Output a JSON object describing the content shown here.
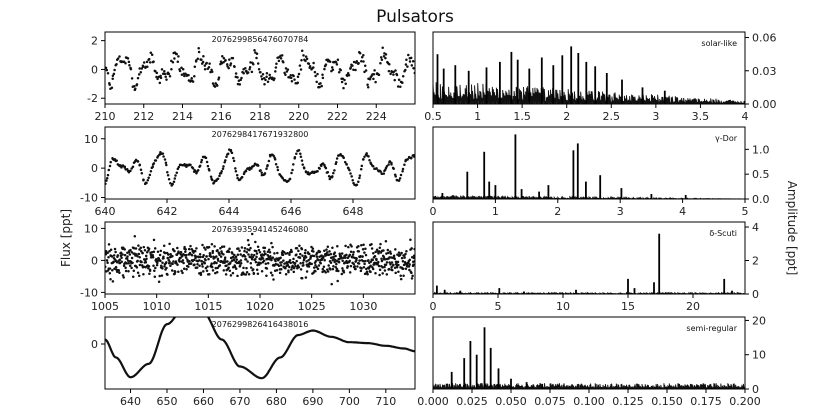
{
  "title": "Pulsators",
  "ylabel_left": "Flux [ppt]",
  "ylabel_right": "Amplitude [ppt]",
  "chart_data": [
    {
      "type": "scatter",
      "label": "2076299856476070784",
      "xlim": [
        210,
        226
      ],
      "ylim": [
        -2.4,
        2.6
      ],
      "xticks": [
        210,
        212,
        214,
        216,
        218,
        220,
        222,
        224
      ],
      "yticks": [
        -2,
        0,
        2
      ],
      "signal": {
        "components": [
          {
            "amp": 0.75,
            "period": 1.35
          },
          {
            "amp": 0.35,
            "period": 0.6
          }
        ],
        "noise": 0.35,
        "points": 360
      }
    },
    {
      "type": "bar",
      "label": "solar-like",
      "xlim": [
        0.5,
        4.0
      ],
      "ylim": [
        0,
        0.065
      ],
      "xticks": [
        0.5,
        1.0,
        1.5,
        2.0,
        2.5,
        3.0,
        3.5,
        4.0
      ],
      "yticks": [
        0.0,
        0.03,
        0.06
      ],
      "ytick_labels": [
        "0.00",
        "0.03",
        "0.06"
      ],
      "peaks": [
        [
          0.55,
          0.045
        ],
        [
          0.62,
          0.032
        ],
        [
          0.75,
          0.035
        ],
        [
          0.9,
          0.03
        ],
        [
          1.1,
          0.033
        ],
        [
          1.25,
          0.038
        ],
        [
          1.38,
          0.047
        ],
        [
          1.45,
          0.04
        ],
        [
          1.58,
          0.032
        ],
        [
          1.72,
          0.042
        ],
        [
          1.85,
          0.035
        ],
        [
          1.95,
          0.044
        ],
        [
          2.05,
          0.052
        ],
        [
          2.13,
          0.046
        ],
        [
          2.22,
          0.038
        ],
        [
          2.32,
          0.034
        ],
        [
          2.45,
          0.028
        ],
        [
          2.62,
          0.022
        ],
        [
          2.85,
          0.015
        ],
        [
          3.1,
          0.012
        ]
      ],
      "floor": {
        "lo": 0.5,
        "hi": 4.0,
        "base": 0.013,
        "decay": 0.0032,
        "bins": 300
      }
    },
    {
      "type": "scatter",
      "label": "2076298417671932800",
      "xlim": [
        640,
        650
      ],
      "ylim": [
        -10.5,
        14
      ],
      "xticks": [
        640,
        642,
        644,
        646,
        648
      ],
      "yticks": [
        -10,
        0,
        10
      ],
      "signal": {
        "components": [
          {
            "amp": 3.2,
            "period": 0.74
          },
          {
            "amp": 2.2,
            "period": 1.15
          },
          {
            "amp": 1.2,
            "period": 0.43
          }
        ],
        "noise": 0.35,
        "points": 330
      }
    },
    {
      "type": "bar",
      "label": "γ-Dor",
      "xlim": [
        0,
        5
      ],
      "ylim": [
        0,
        1.45
      ],
      "xticks": [
        0,
        1,
        2,
        3,
        4,
        5
      ],
      "yticks": [
        0.0,
        0.5,
        1.0
      ],
      "ytick_labels": [
        "0.0",
        "0.5",
        "1.0"
      ],
      "peaks": [
        [
          0.15,
          0.12
        ],
        [
          0.55,
          0.55
        ],
        [
          0.82,
          0.95
        ],
        [
          0.9,
          0.35
        ],
        [
          1.0,
          0.28
        ],
        [
          1.32,
          1.3
        ],
        [
          1.42,
          0.2
        ],
        [
          1.7,
          0.15
        ],
        [
          1.85,
          0.28
        ],
        [
          2.25,
          0.98
        ],
        [
          2.32,
          1.12
        ],
        [
          2.45,
          0.35
        ],
        [
          2.68,
          0.48
        ],
        [
          3.02,
          0.22
        ],
        [
          3.5,
          0.1
        ],
        [
          4.05,
          0.08
        ]
      ],
      "floor": {
        "lo": 0,
        "hi": 5,
        "base": 0.05,
        "decay": 0.01,
        "bins": 260
      }
    },
    {
      "type": "scatter",
      "label": "2076393594145246080",
      "xlim": [
        1005,
        1035
      ],
      "ylim": [
        -10.5,
        12
      ],
      "xticks": [
        1005,
        1010,
        1015,
        1020,
        1025,
        1030
      ],
      "yticks": [
        -10,
        0,
        10
      ],
      "signal": {
        "components": [
          {
            "amp": 2.3,
            "period": 0.058
          },
          {
            "amp": 1.2,
            "period": 0.066
          }
        ],
        "noise": 2.6,
        "points": 950
      }
    },
    {
      "type": "bar",
      "label": "δ-Scuti",
      "xlim": [
        0,
        24
      ],
      "ylim": [
        0,
        4.3
      ],
      "xticks": [
        0,
        5,
        10,
        15,
        20
      ],
      "yticks": [
        0,
        2,
        4
      ],
      "ytick_labels": [
        "0",
        "2",
        "4"
      ],
      "peaks": [
        [
          0.3,
          0.5
        ],
        [
          0.9,
          0.25
        ],
        [
          2.1,
          0.2
        ],
        [
          5.1,
          0.35
        ],
        [
          7.0,
          0.15
        ],
        [
          11.0,
          0.25
        ],
        [
          15.0,
          0.9
        ],
        [
          15.5,
          0.35
        ],
        [
          17.0,
          0.7
        ],
        [
          17.4,
          3.6
        ],
        [
          22.4,
          0.9
        ],
        [
          23.0,
          0.2
        ]
      ],
      "floor": {
        "lo": 0,
        "hi": 24,
        "base": 0.05,
        "decay": 0.0,
        "bins": 200
      }
    },
    {
      "type": "line",
      "label": "2076299826416438016",
      "xlim": [
        633,
        718
      ],
      "ylim": [
        -50,
        30
      ],
      "xticks": [
        640,
        650,
        660,
        670,
        680,
        690,
        700,
        710
      ],
      "yticks": [
        0
      ],
      "curve": [
        [
          633,
          5
        ],
        [
          636,
          -15
        ],
        [
          640,
          -37
        ],
        [
          645,
          -22
        ],
        [
          650,
          22
        ],
        [
          655,
          42
        ],
        [
          660,
          35
        ],
        [
          665,
          5
        ],
        [
          670,
          -25
        ],
        [
          676,
          -38
        ],
        [
          681,
          -15
        ],
        [
          686,
          10
        ],
        [
          690,
          15
        ],
        [
          695,
          8
        ],
        [
          700,
          2
        ],
        [
          705,
          1
        ],
        [
          710,
          -2
        ],
        [
          715,
          -5
        ],
        [
          718,
          -8
        ]
      ]
    },
    {
      "type": "bar",
      "label": "semi-regular",
      "xlim": [
        0.0,
        0.2
      ],
      "ylim": [
        0,
        21
      ],
      "xticks": [
        0.0,
        0.025,
        0.05,
        0.075,
        0.1,
        0.125,
        0.15,
        0.175,
        0.2
      ],
      "xtick_labels": [
        "0.000",
        "0.025",
        "0.050",
        "0.075",
        "0.100",
        "0.125",
        "0.150",
        "0.175",
        "0.200"
      ],
      "yticks": [
        0,
        10,
        20
      ],
      "ytick_labels": [
        "0",
        "10",
        "20"
      ],
      "peaks": [
        [
          0.012,
          5
        ],
        [
          0.02,
          9
        ],
        [
          0.024,
          14
        ],
        [
          0.028,
          10
        ],
        [
          0.033,
          18
        ],
        [
          0.037,
          12
        ],
        [
          0.042,
          6
        ],
        [
          0.05,
          3
        ],
        [
          0.06,
          2
        ],
        [
          0.07,
          1.5
        ]
      ],
      "floor": {
        "lo": 0.0,
        "hi": 0.2,
        "base": 1.0,
        "decay": 0.0,
        "bins": 400
      }
    }
  ]
}
